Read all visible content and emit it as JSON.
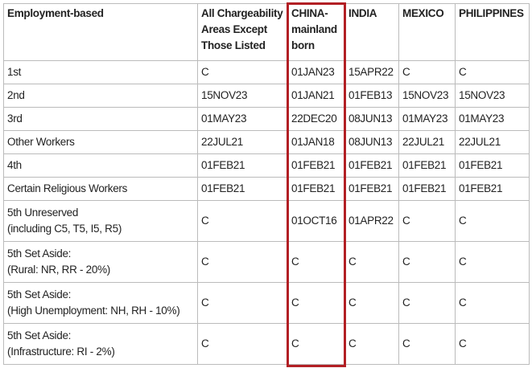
{
  "table": {
    "header": [
      "Employment-based",
      "All Chargeability Areas Except Those Listed",
      "CHINA-mainland born",
      "INDIA",
      "MEXICO",
      "PHILIPPINES"
    ],
    "rows": [
      [
        "1st",
        "C",
        "01JAN23",
        "15APR22",
        "C",
        "C"
      ],
      [
        "2nd",
        "15NOV23",
        "01JAN21",
        "01FEB13",
        "15NOV23",
        "15NOV23"
      ],
      [
        "3rd",
        "01MAY23",
        "22DEC20",
        "08JUN13",
        "01MAY23",
        "01MAY23"
      ],
      [
        "Other Workers",
        "22JUL21",
        "01JAN18",
        "08JUN13",
        "22JUL21",
        "22JUL21"
      ],
      [
        "4th",
        "01FEB21",
        "01FEB21",
        "01FEB21",
        "01FEB21",
        "01FEB21"
      ],
      [
        "Certain Religious Workers",
        "01FEB21",
        "01FEB21",
        "01FEB21",
        "01FEB21",
        "01FEB21"
      ],
      [
        "5th Unreserved\n(including C5, T5, I5, R5)",
        "C",
        "01OCT16",
        "01APR22",
        "C",
        "C"
      ],
      [
        "5th Set Aside:\n(Rural: NR, RR - 20%)",
        "C",
        "C",
        "C",
        "C",
        "C"
      ],
      [
        "5th Set Aside:\n(High Unemployment: NH, RH - 10%)",
        "C",
        "C",
        "C",
        "C",
        "C"
      ],
      [
        "5th Set Aside:\n(Infrastructure: RI - 2%)",
        "C",
        "C",
        "C",
        "C",
        "C"
      ]
    ]
  }
}
